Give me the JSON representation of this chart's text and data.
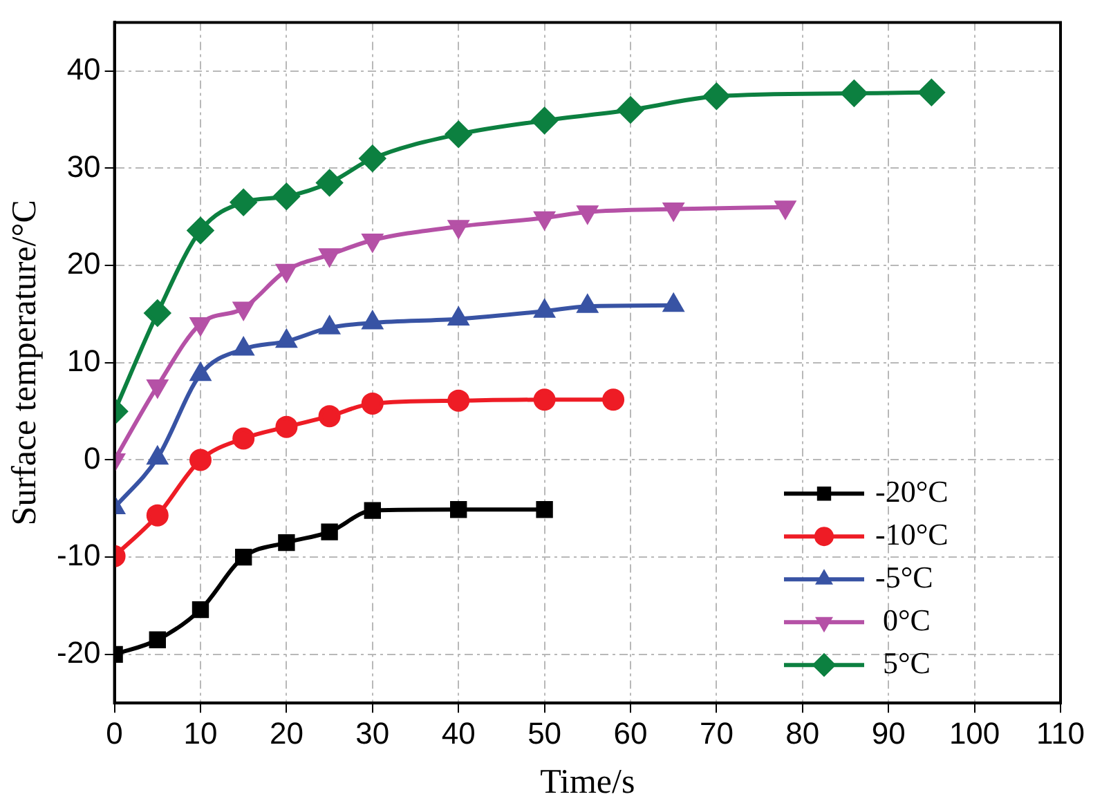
{
  "chart_data": {
    "type": "line",
    "xlabel": "Time/s",
    "ylabel": "Surface temperature/°C",
    "xlim": [
      0,
      110
    ],
    "xticks": [
      0,
      10,
      20,
      30,
      40,
      50,
      60,
      70,
      80,
      90,
      100,
      110
    ],
    "ylim": [
      -25,
      45
    ],
    "yticks": [
      -20,
      -10,
      0,
      10,
      20,
      30,
      40
    ],
    "grid": true,
    "legend": "bottom right",
    "line_style": "solid",
    "series": [
      {
        "name": "-20°C",
        "color": "#000000",
        "marker": "square",
        "x": [
          0,
          5,
          10,
          15,
          20,
          25,
          30,
          40,
          50
        ],
        "values": [
          -20,
          -18.5,
          -15.4,
          -10,
          -8.5,
          -7.4,
          -5.2,
          -5.1,
          -5.1
        ]
      },
      {
        "name": "-10°C",
        "color": "#ee1c25",
        "marker": "circle",
        "x": [
          0,
          5,
          10,
          15,
          20,
          25,
          30,
          40,
          50,
          58
        ],
        "values": [
          -9.9,
          -5.7,
          0,
          2.2,
          3.4,
          4.5,
          5.8,
          6.1,
          6.2,
          6.2
        ]
      },
      {
        "name": "-5°C",
        "color": "#3853a4",
        "marker": "triangle",
        "x": [
          0,
          5,
          10,
          15,
          20,
          25,
          30,
          40,
          50,
          55,
          65
        ],
        "values": [
          -4.9,
          0.2,
          8.8,
          11.4,
          12.2,
          13.6,
          14.1,
          14.5,
          15.3,
          15.8,
          15.9
        ]
      },
      {
        "name": " 0°C",
        "color": "#b551a6",
        "marker": "triangle-down",
        "x": [
          0,
          5,
          10,
          15,
          20,
          25,
          30,
          40,
          50,
          55,
          65,
          78
        ],
        "values": [
          0,
          7.6,
          14,
          15.6,
          19.5,
          21.1,
          22.6,
          24,
          24.9,
          25.5,
          25.8,
          26
        ]
      },
      {
        "name": " 5°C",
        "color": "#0c8040",
        "marker": "diamond",
        "x": [
          0,
          5,
          10,
          15,
          20,
          25,
          30,
          40,
          50,
          60,
          70,
          86,
          95
        ],
        "values": [
          5,
          15.1,
          23.6,
          26.5,
          27.1,
          28.5,
          31,
          33.5,
          34.9,
          36,
          37.4,
          37.7,
          37.8
        ]
      }
    ]
  }
}
